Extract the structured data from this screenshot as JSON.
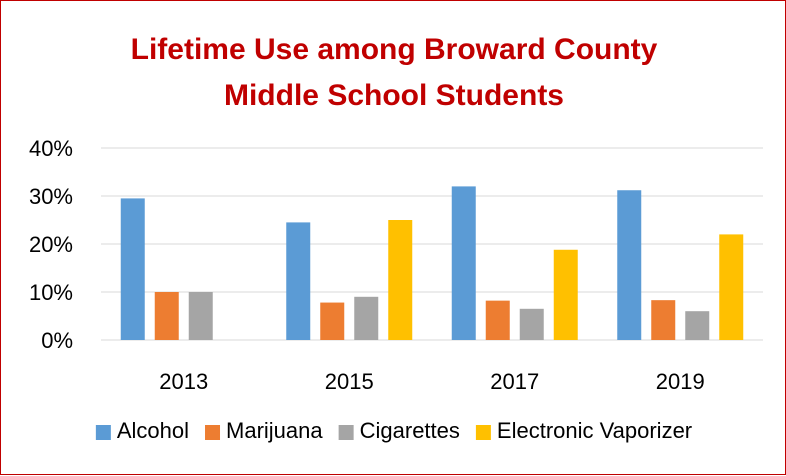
{
  "chart_data": {
    "type": "bar",
    "title": "Lifetime Use among Broward County Middle School Students",
    "title_lines": [
      "Lifetime Use among Broward County",
      "Middle School Students"
    ],
    "categories": [
      "2013",
      "2015",
      "2017",
      "2019"
    ],
    "series": [
      {
        "name": "Alcohol",
        "color": "#5b9bd5",
        "values": [
          29.5,
          24.5,
          32.0,
          31.2
        ]
      },
      {
        "name": "Marijuana",
        "color": "#ed7d31",
        "values": [
          10.0,
          7.8,
          8.2,
          8.3
        ]
      },
      {
        "name": "Cigarettes",
        "color": "#a5a5a5",
        "values": [
          10.0,
          9.0,
          6.5,
          6.0
        ]
      },
      {
        "name": "Electronic Vaporizer",
        "color": "#ffc000",
        "values": [
          null,
          25.0,
          18.8,
          22.0
        ]
      }
    ],
    "ylim": [
      0,
      40
    ],
    "yticks": [
      0,
      10,
      20,
      30,
      40
    ],
    "ytick_labels": [
      "0%",
      "10%",
      "20%",
      "30%",
      "40%"
    ],
    "xlabel": "",
    "ylabel": "",
    "grid": true,
    "legend_position": "bottom",
    "title_color": "#c00000",
    "gridline_color": "#d9d9d9",
    "border_color": "#c00000"
  }
}
